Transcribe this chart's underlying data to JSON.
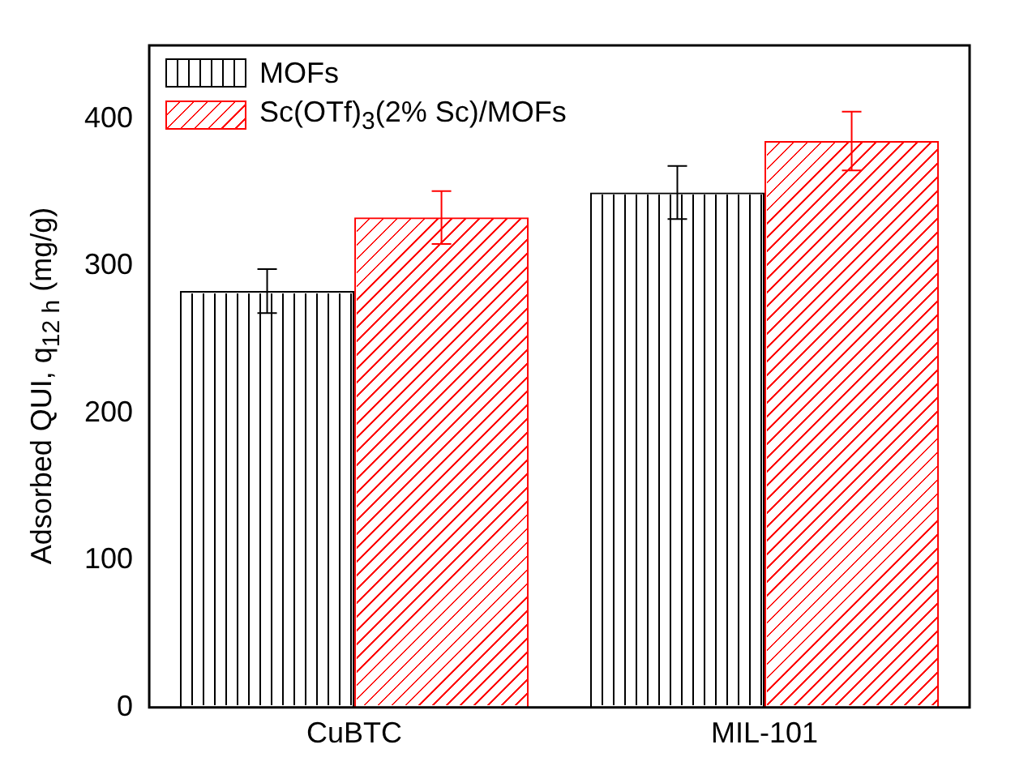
{
  "chart_data": {
    "type": "bar",
    "ylabel": "Adsorbed QUI, q$_{12 h}$ (mg/g)",
    "categories": [
      "CuBTC",
      "MIL-101"
    ],
    "series": [
      {
        "name": "MOFs",
        "color": "#000000",
        "values": [
          283,
          350
        ],
        "errors": [
          15,
          18
        ]
      },
      {
        "name": "Sc(OTf)$_{3}$(2% Sc)/MOFs",
        "color": "#ff0000",
        "values": [
          333,
          385
        ],
        "errors": [
          18,
          20
        ]
      }
    ],
    "ylim": [
      0,
      450
    ],
    "yticks": [
      0,
      100,
      200,
      300,
      400
    ],
    "grid": false,
    "legend": "top left"
  }
}
